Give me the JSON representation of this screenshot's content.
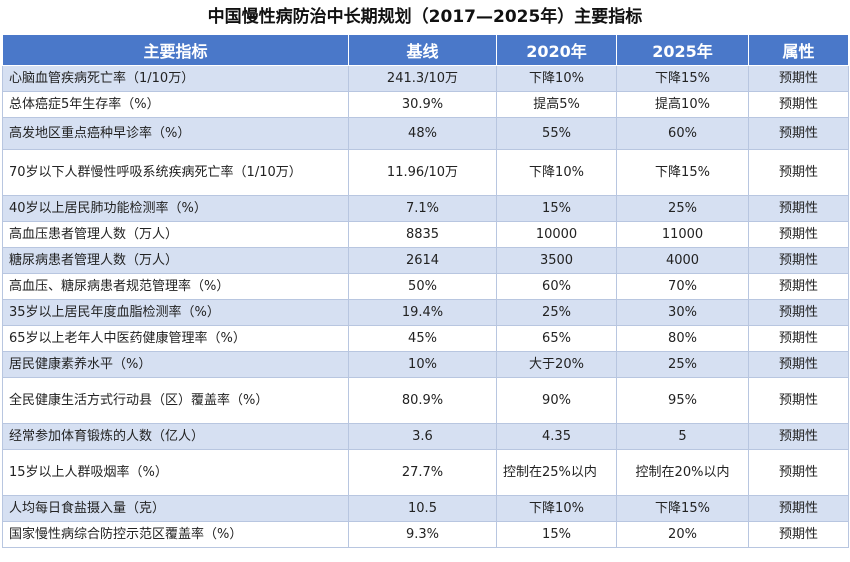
{
  "title": "中国慢性病防治中长期规划（2017—2025年）主要指标",
  "columns": [
    "主要指标",
    "基线",
    "2020年",
    "2025年",
    "属性"
  ],
  "rows": [
    {
      "indicator": "心脑血管疾病死亡率（1/10万）",
      "baseline": "241.3/10万",
      "y2020": "下降10%",
      "y2025": "下降15%",
      "attr": "预期性"
    },
    {
      "indicator": "总体癌症5年生存率（%）",
      "baseline": "30.9%",
      "y2020": "提高5%",
      "y2025": "提高10%",
      "attr": "预期性"
    },
    {
      "indicator": "高发地区重点癌种早诊率（%）",
      "baseline": "48%",
      "y2020": "55%",
      "y2025": "60%",
      "attr": "预期性"
    },
    {
      "indicator": "70岁以下人群慢性呼吸系统疾病死亡率（1/10万）",
      "baseline": "11.96/10万",
      "y2020": "下降10%",
      "y2025": "下降15%",
      "attr": "预期性"
    },
    {
      "indicator": "40岁以上居民肺功能检测率（%）",
      "baseline": "7.1%",
      "y2020": "15%",
      "y2025": "25%",
      "attr": "预期性"
    },
    {
      "indicator": "高血压患者管理人数（万人）",
      "baseline": "8835",
      "y2020": "10000",
      "y2025": "11000",
      "attr": "预期性"
    },
    {
      "indicator": "糖尿病患者管理人数（万人）",
      "baseline": "2614",
      "y2020": "3500",
      "y2025": "4000",
      "attr": "预期性"
    },
    {
      "indicator": "高血压、糖尿病患者规范管理率（%）",
      "baseline": "50%",
      "y2020": "60%",
      "y2025": "70%",
      "attr": "预期性"
    },
    {
      "indicator": "35岁以上居民年度血脂检测率（%）",
      "baseline": "19.4%",
      "y2020": "25%",
      "y2025": "30%",
      "attr": "预期性"
    },
    {
      "indicator": "65岁以上老年人中医药健康管理率（%）",
      "baseline": "45%",
      "y2020": "65%",
      "y2025": "80%",
      "attr": "预期性"
    },
    {
      "indicator": "居民健康素养水平（%）",
      "baseline": "10%",
      "y2020": "大于20%",
      "y2025": "25%",
      "attr": "预期性"
    },
    {
      "indicator": "全民健康生活方式行动县（区）覆盖率（%）",
      "baseline": "80.9%",
      "y2020": "90%",
      "y2025": "95%",
      "attr": "预期性"
    },
    {
      "indicator": "经常参加体育锻炼的人数（亿人）",
      "baseline": "3.6",
      "y2020": "4.35",
      "y2025": "5",
      "attr": "预期性"
    },
    {
      "indicator": "15岁以上人群吸烟率（%）",
      "baseline": "27.7%",
      "y2020": "控制在25%以内",
      "y2025": "控制在20%以内",
      "attr": "预期性"
    },
    {
      "indicator": "人均每日食盐摄入量（克）",
      "baseline": "10.5",
      "y2020": "下降10%",
      "y2025": "下降15%",
      "attr": "预期性"
    },
    {
      "indicator": "国家慢性病综合防控示范区覆盖率（%）",
      "baseline": "9.3%",
      "y2020": "15%",
      "y2025": "20%",
      "attr": "预期性"
    }
  ]
}
